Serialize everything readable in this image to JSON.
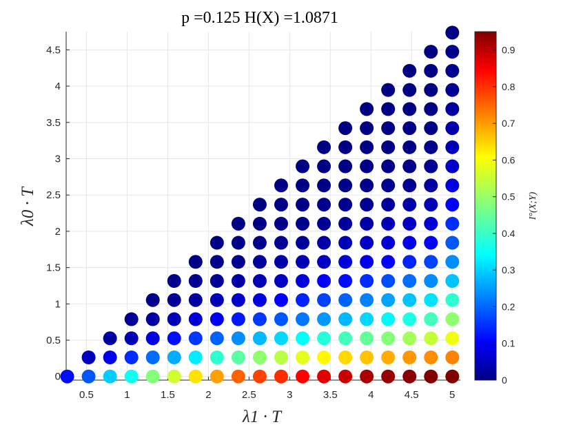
{
  "chart_data": {
    "type": "scatter",
    "title": "p =0.125    H(X) =1.0871",
    "xlabel": "λ1 · T",
    "ylabel": "λ0 · T",
    "colorbar_label": "I°(X;Y)",
    "xlim": [
      0.25,
      5.1
    ],
    "ylim": [
      -0.05,
      4.75
    ],
    "clim": [
      0,
      0.95
    ],
    "x_ticks": [
      "0.5",
      "1",
      "1.5",
      "2",
      "2.5",
      "3",
      "3.5",
      "4",
      "4.5",
      "5"
    ],
    "y_ticks": [
      "0",
      "0.5",
      "1",
      "1.5",
      "2",
      "2.5",
      "3",
      "3.5",
      "4",
      "4.5"
    ],
    "colorbar_ticks": [
      "0",
      "0.1",
      "0.2",
      "0.3",
      "0.4",
      "0.5",
      "0.6",
      "0.7",
      "0.8",
      "0.9"
    ],
    "colormap": "jet",
    "grid": true,
    "grid_step": 0.2632,
    "x_step": 0.2632,
    "y_step": 0.2632,
    "note_points": "Points on grid lambda1 = 0.263*i (i=1..19), lambda0 = 0.263*j (j=0..i-1); color encodes I(X;Y)",
    "rows": [
      {
        "y": 0.0,
        "values": [
          0.13,
          0.2,
          0.31,
          0.37,
          0.48,
          0.55,
          0.62,
          0.68,
          0.74,
          0.77,
          0.79,
          0.83,
          0.86,
          0.88,
          0.91,
          0.93,
          0.94,
          0.95,
          0.95
        ]
      },
      {
        "y": 0.263,
        "values": [
          0.06,
          0.1,
          0.16,
          0.22,
          0.28,
          0.34,
          0.4,
          0.44,
          0.49,
          0.53,
          0.57,
          0.6,
          0.63,
          0.65,
          0.67,
          0.69,
          0.7,
          0.71
        ]
      },
      {
        "y": 0.526,
        "values": [
          0.03,
          0.05,
          0.09,
          0.13,
          0.17,
          0.21,
          0.25,
          0.29,
          0.32,
          0.36,
          0.39,
          0.42,
          0.45,
          0.48,
          0.51,
          0.54,
          0.58
        ]
      },
      {
        "y": 0.789,
        "values": [
          0.02,
          0.03,
          0.05,
          0.08,
          0.11,
          0.14,
          0.17,
          0.2,
          0.23,
          0.26,
          0.29,
          0.32,
          0.35,
          0.38,
          0.42,
          0.49
        ]
      },
      {
        "y": 1.053,
        "values": [
          0.01,
          0.02,
          0.03,
          0.05,
          0.07,
          0.09,
          0.12,
          0.15,
          0.18,
          0.21,
          0.24,
          0.27,
          0.3,
          0.33,
          0.4
        ]
      },
      {
        "y": 1.316,
        "values": [
          0.01,
          0.015,
          0.02,
          0.035,
          0.05,
          0.065,
          0.085,
          0.11,
          0.13,
          0.16,
          0.19,
          0.22,
          0.25,
          0.3
        ]
      },
      {
        "y": 1.579,
        "values": [
          0.005,
          0.01,
          0.015,
          0.025,
          0.035,
          0.05,
          0.065,
          0.085,
          0.1,
          0.12,
          0.15,
          0.18,
          0.25
        ]
      },
      {
        "y": 1.842,
        "values": [
          0.005,
          0.008,
          0.012,
          0.018,
          0.025,
          0.035,
          0.05,
          0.065,
          0.08,
          0.1,
          0.12,
          0.2
        ]
      },
      {
        "y": 2.105,
        "values": [
          0.004,
          0.006,
          0.009,
          0.013,
          0.018,
          0.025,
          0.035,
          0.05,
          0.065,
          0.08,
          0.16
        ]
      },
      {
        "y": 2.368,
        "values": [
          0.003,
          0.005,
          0.007,
          0.01,
          0.014,
          0.02,
          0.027,
          0.037,
          0.05,
          0.12
        ]
      },
      {
        "y": 2.632,
        "values": [
          0.002,
          0.004,
          0.005,
          0.008,
          0.011,
          0.015,
          0.02,
          0.03,
          0.09
        ]
      },
      {
        "y": 2.895,
        "values": [
          0.002,
          0.003,
          0.004,
          0.006,
          0.008,
          0.012,
          0.016,
          0.07
        ]
      },
      {
        "y": 3.158,
        "values": [
          0.002,
          0.003,
          0.004,
          0.005,
          0.007,
          0.01,
          0.05
        ]
      },
      {
        "y": 3.421,
        "values": [
          0.001,
          0.002,
          0.003,
          0.004,
          0.006,
          0.04
        ]
      },
      {
        "y": 3.684,
        "values": [
          0.001,
          0.002,
          0.003,
          0.004,
          0.03
        ]
      },
      {
        "y": 3.947,
        "values": [
          0.001,
          0.002,
          0.003,
          0.02
        ]
      },
      {
        "y": 4.211,
        "values": [
          0.001,
          0.002,
          0.015
        ]
      },
      {
        "y": 4.474,
        "values": [
          0.001,
          0.01
        ]
      },
      {
        "y": 4.737,
        "values": [
          0.005
        ]
      }
    ]
  }
}
